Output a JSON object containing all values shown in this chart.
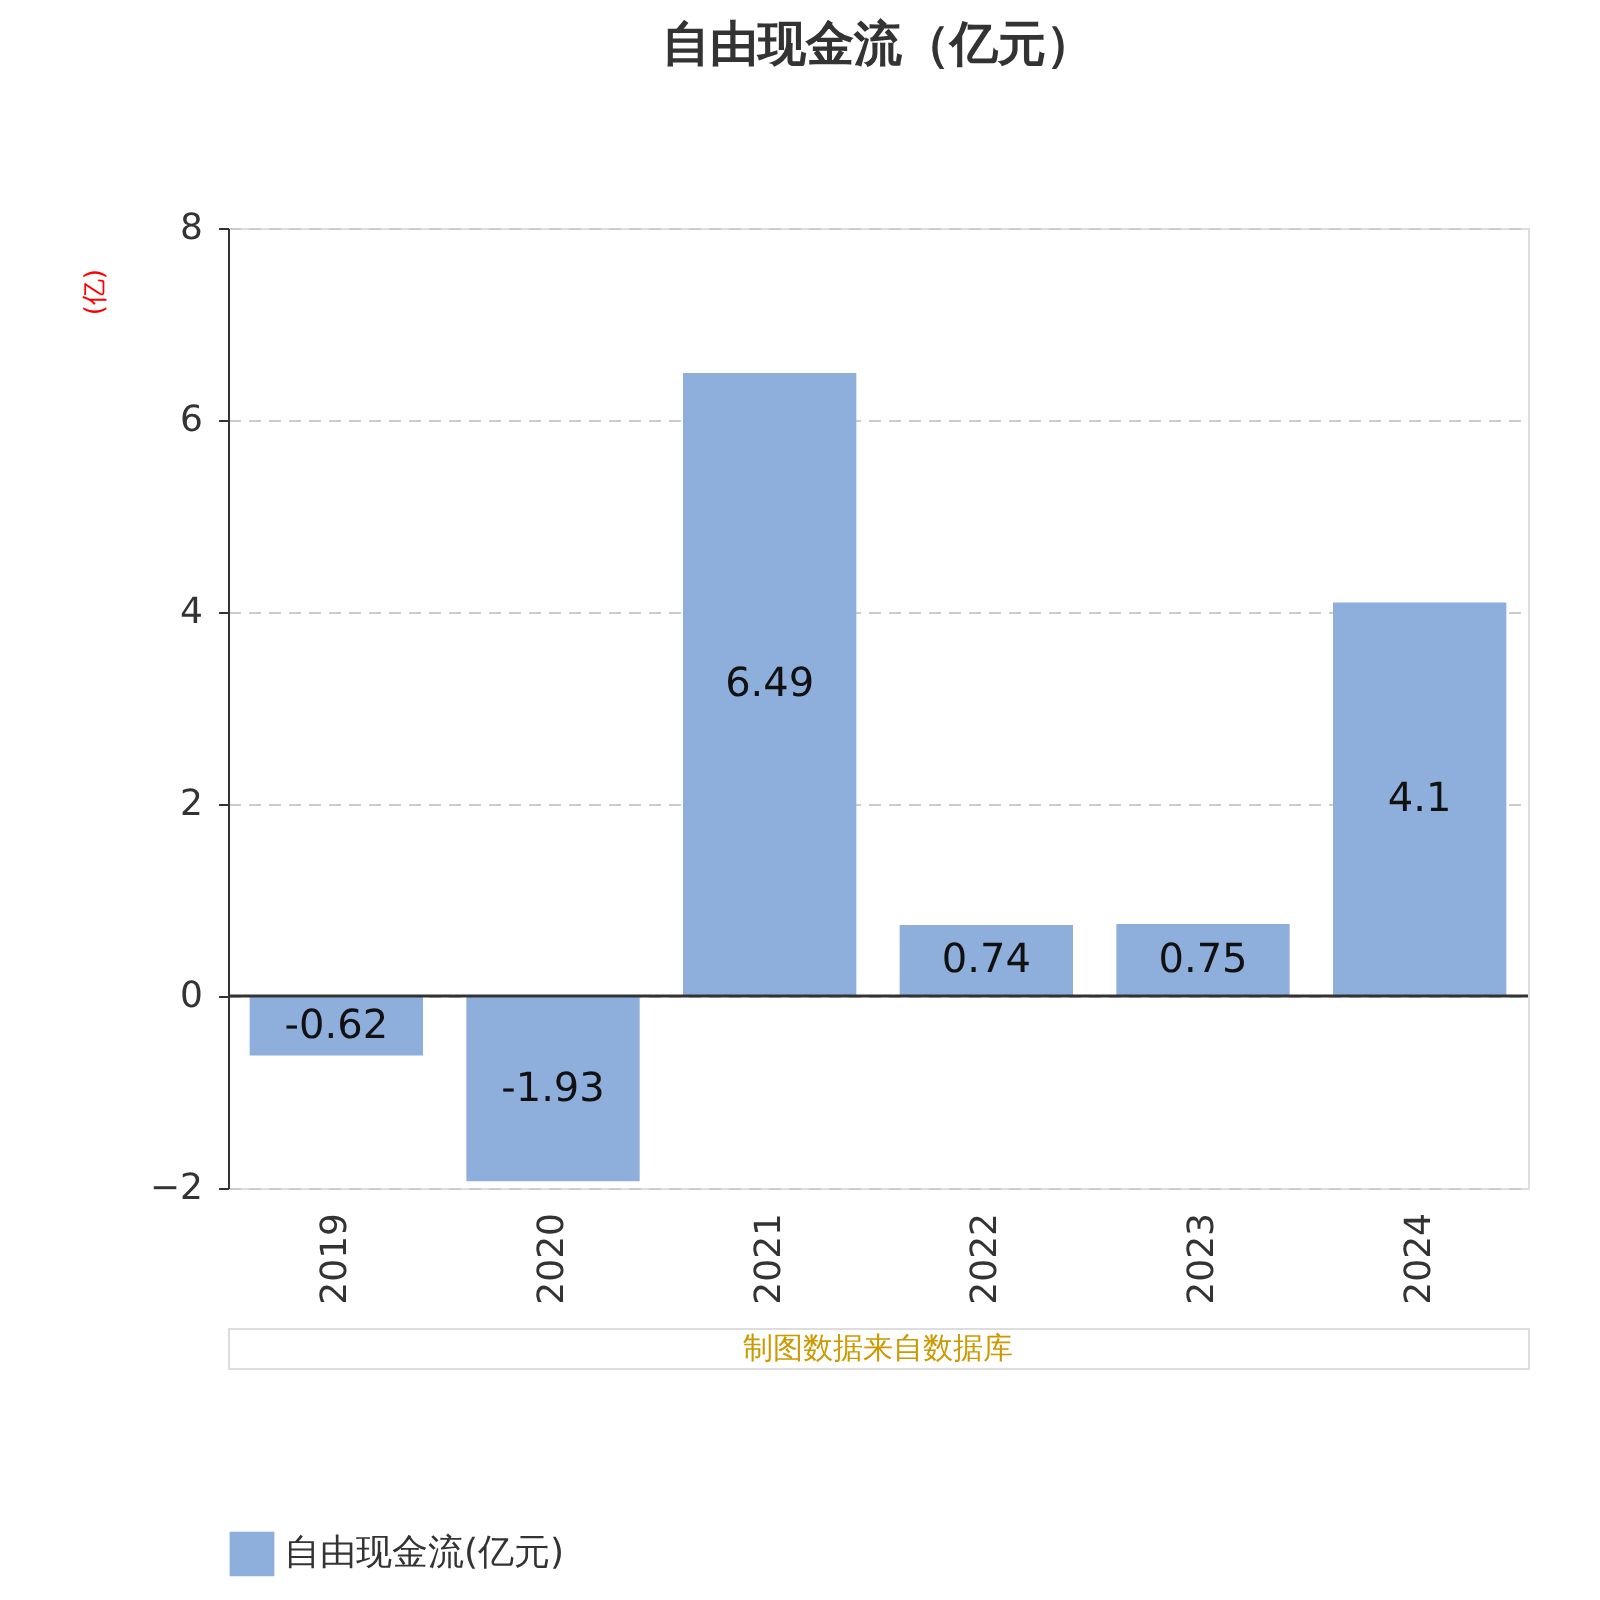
{
  "chart_data": {
    "type": "bar",
    "title": "自由现金流（亿元）",
    "ylabel": "(亿)",
    "categories": [
      "2019",
      "2020",
      "2021",
      "2022",
      "2023",
      "2024"
    ],
    "series": [
      {
        "name": "自由现金流(亿元)",
        "color": "#8eaedb",
        "values": [
          -0.62,
          -1.93,
          6.49,
          0.74,
          0.75,
          4.1
        ]
      }
    ],
    "ylim": [
      -2,
      8
    ],
    "yticks": [
      -2,
      0,
      2,
      4,
      6,
      8
    ],
    "grid": "y",
    "legend": "bottom",
    "data_labels": true,
    "annotations": [
      "制图数据来自数据库"
    ]
  }
}
